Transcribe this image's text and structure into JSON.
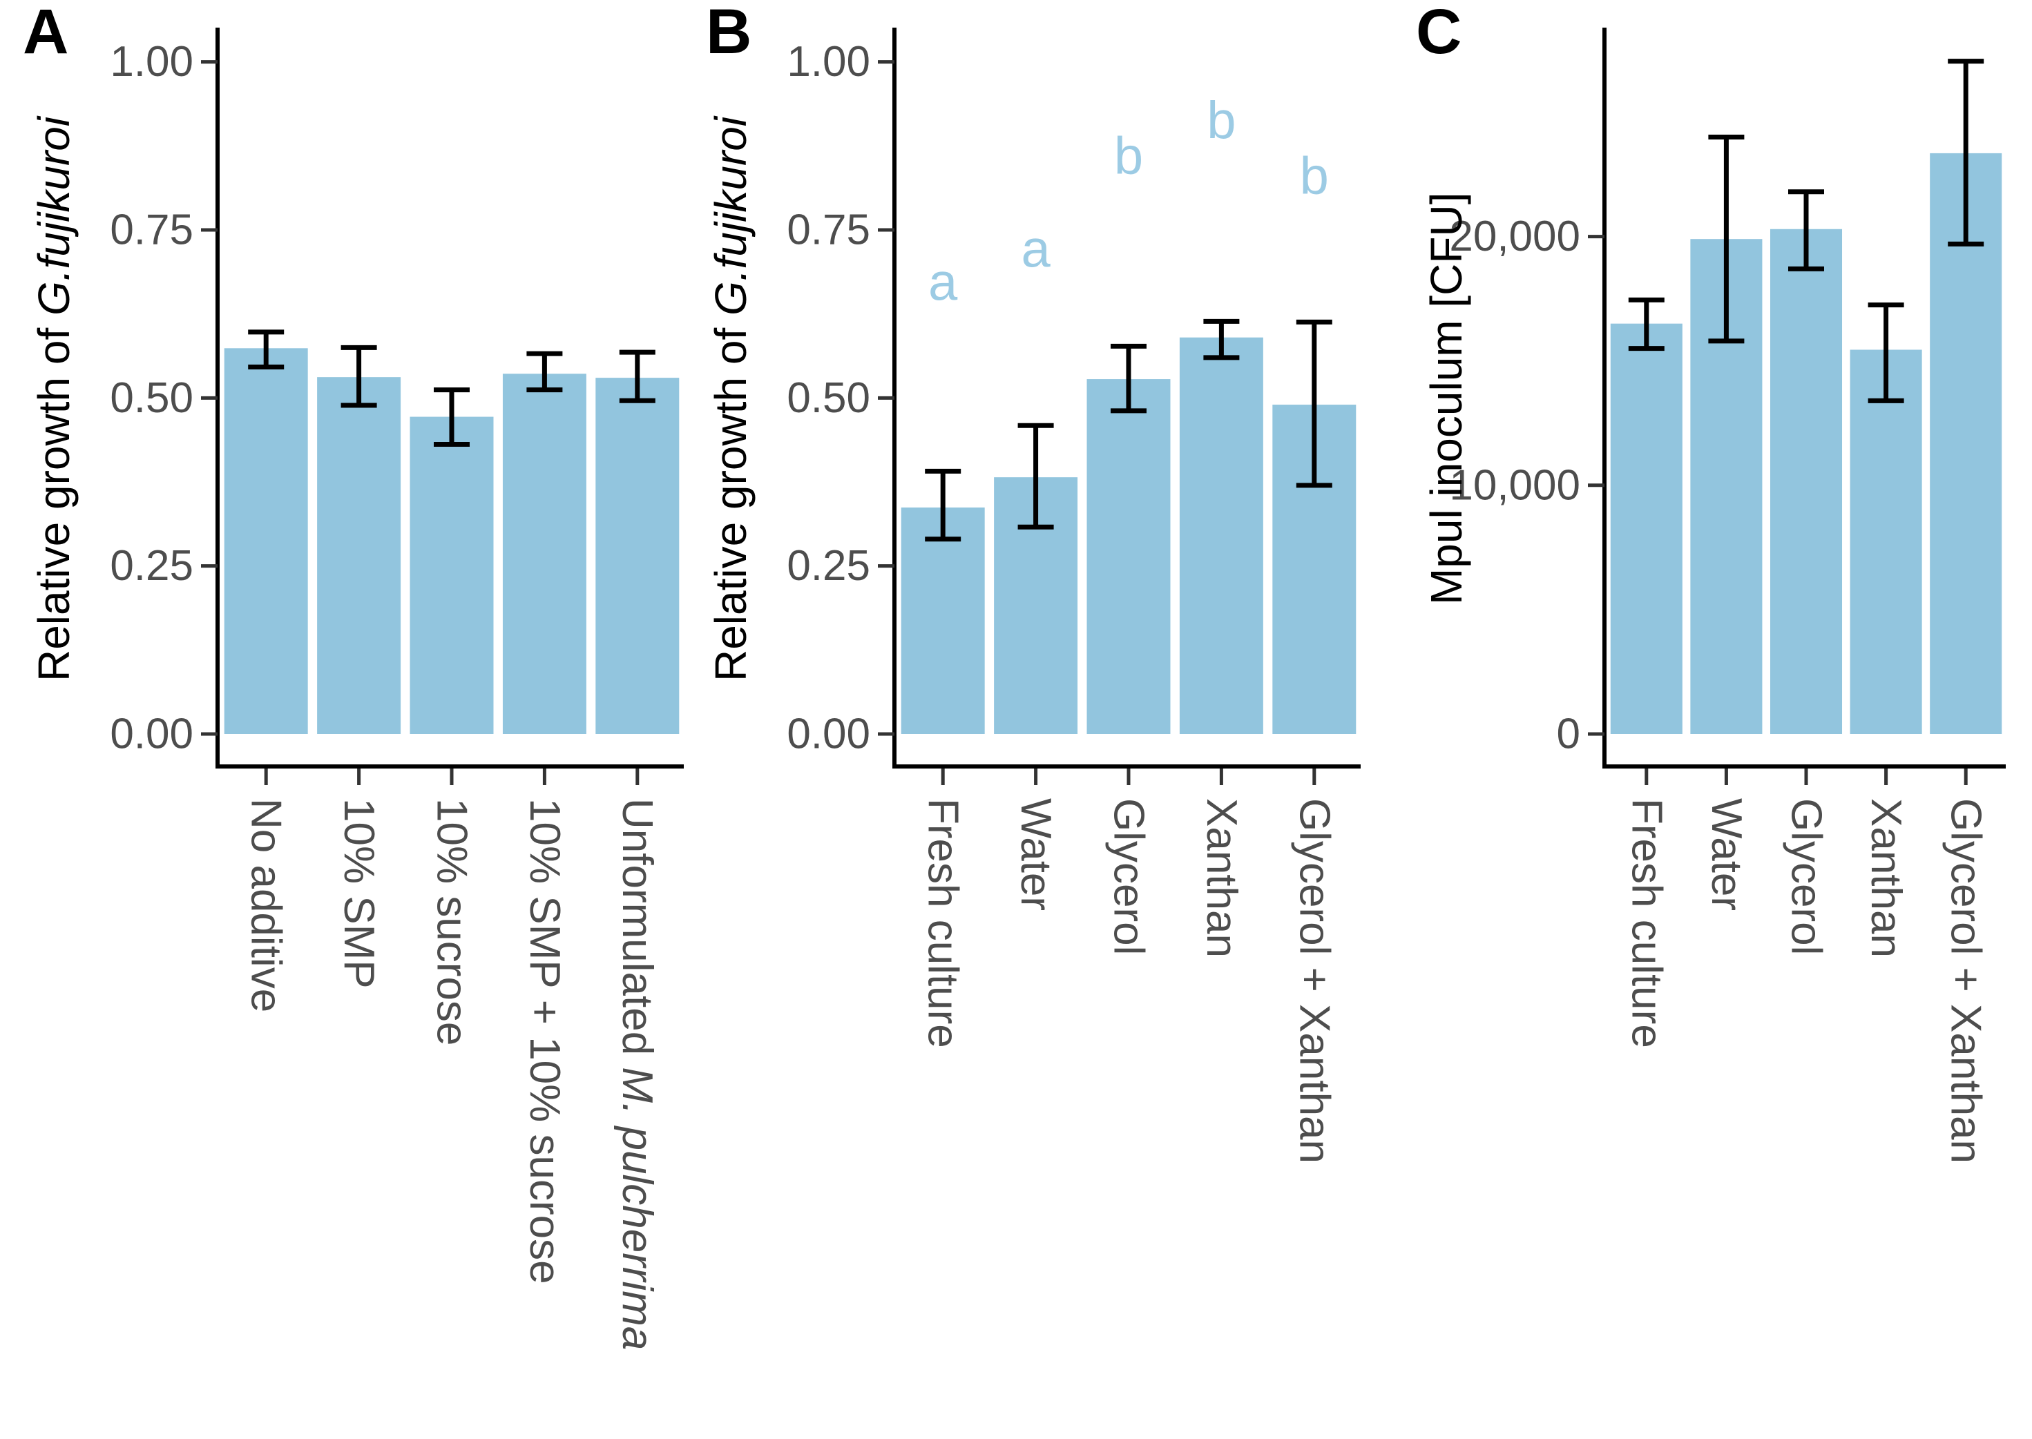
{
  "figure": {
    "background": "#ffffff"
  },
  "colors": {
    "bar_fill": "#92C5DE",
    "sig_letter": "#9CCBE4",
    "axis_line": "#000000",
    "tick_mark": "#333333",
    "tick_text": "#4D4D4D",
    "error_bar": "#000000"
  },
  "chart_data": [
    {
      "type": "bar",
      "panel_label": "A",
      "ylabel": "Relative growth of G.fujikuroi",
      "ylabel_segments": [
        {
          "text": "Relative growth of ",
          "italic": false
        },
        {
          "text": "G.fujikuroi",
          "italic": true
        }
      ],
      "xlabel": "",
      "categories": [
        "No additive",
        "10% SMP",
        "10% sucrose",
        "10% SMP + 10% sucrose",
        "Unformulated M. pulcherrima"
      ],
      "category_italic_suffix": {
        "4": "M. pulcherrima"
      },
      "values": [
        0.574,
        0.531,
        0.472,
        0.536,
        0.53
      ],
      "error_low": [
        0.546,
        0.489,
        0.431,
        0.512,
        0.496
      ],
      "error_high": [
        0.598,
        0.575,
        0.512,
        0.566,
        0.568
      ],
      "sig_letters": [],
      "ylim": [
        0,
        1.051
      ],
      "yticks": [
        0,
        0.25,
        0.5,
        0.75,
        1.0
      ],
      "ytick_labels": [
        "0.00",
        "0.25",
        "0.50",
        "0.75",
        "1.00"
      ],
      "grid": false,
      "legend": null
    },
    {
      "type": "bar",
      "panel_label": "B",
      "ylabel": "Relative growth of  G.fujikuroi",
      "ylabel_segments": [
        {
          "text": "Relative growth of  ",
          "italic": false
        },
        {
          "text": "G.fujikuroi",
          "italic": true
        }
      ],
      "xlabel": "",
      "categories": [
        "Fresh culture",
        "Water",
        "Glycerol",
        "Xanthan",
        "Glycerol + Xanthan"
      ],
      "category_italic_suffix": {},
      "values": [
        0.337,
        0.382,
        0.528,
        0.59,
        0.49
      ],
      "error_low": [
        0.29,
        0.308,
        0.481,
        0.56,
        0.37
      ],
      "error_high": [
        0.391,
        0.459,
        0.577,
        0.614,
        0.613
      ],
      "sig_letters": [
        {
          "text": "a",
          "y": 0.672
        },
        {
          "text": "a",
          "y": 0.721
        },
        {
          "text": "b",
          "y": 0.86
        },
        {
          "text": "b",
          "y": 0.913
        },
        {
          "text": "b",
          "y": 0.83
        }
      ],
      "ylim": [
        0,
        1.051
      ],
      "yticks": [
        0,
        0.25,
        0.5,
        0.75,
        1.0
      ],
      "ytick_labels": [
        "0.00",
        "0.25",
        "0.50",
        "0.75",
        "1.00"
      ],
      "grid": false,
      "legend": null
    },
    {
      "type": "bar",
      "panel_label": "C",
      "ylabel": "Mpul inoculum [CFU]",
      "ylabel_segments": [
        {
          "text": "Mpul inoculum [CFU]",
          "italic": false
        }
      ],
      "xlabel": "",
      "categories": [
        "Fresh culture",
        "Water",
        "Glycerol",
        "Xanthan",
        "Glycerol + Xanthan"
      ],
      "category_italic_suffix": {},
      "values": [
        16500,
        19900,
        20300,
        15450,
        23350
      ],
      "error_low": [
        15500,
        15800,
        18700,
        13400,
        19700
      ],
      "error_high": [
        17450,
        24000,
        21800,
        17250,
        27050
      ],
      "sig_letters": [],
      "ylim": [
        0,
        28400
      ],
      "yticks": [
        0,
        10000,
        20000
      ],
      "ytick_labels": [
        "0",
        "10,000",
        "20,000"
      ],
      "grid": false,
      "legend": null
    }
  ]
}
